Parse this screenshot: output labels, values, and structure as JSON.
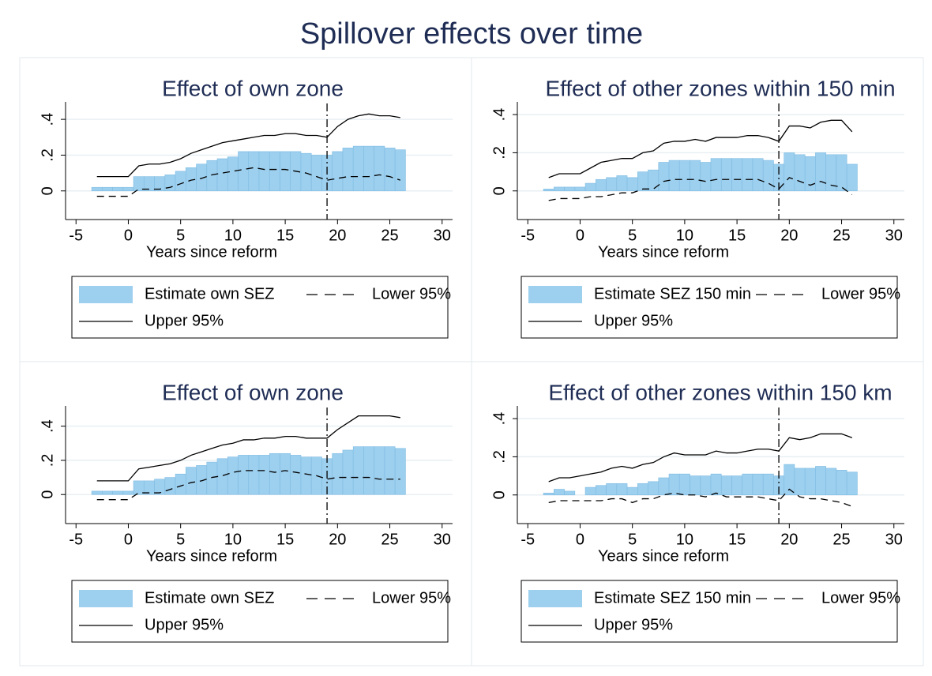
{
  "title": "Spillover effects over time",
  "chart_data": [
    {
      "type": "bar",
      "title": "Effect of own zone",
      "xlabel": "Years since reform",
      "x": [
        -3,
        -2,
        -1,
        0,
        1,
        2,
        3,
        4,
        5,
        6,
        7,
        8,
        9,
        10,
        11,
        12,
        13,
        14,
        15,
        16,
        17,
        18,
        19,
        20,
        21,
        22,
        23,
        24,
        25,
        26
      ],
      "series": [
        {
          "name": "Estimate own SEZ",
          "type": "bar",
          "color": "#9dcfee",
          "values": [
            0.02,
            0.02,
            0.02,
            0.02,
            0.08,
            0.08,
            0.08,
            0.09,
            0.11,
            0.13,
            0.15,
            0.17,
            0.18,
            0.19,
            0.22,
            0.22,
            0.22,
            0.22,
            0.22,
            0.22,
            0.21,
            0.2,
            0.2,
            0.22,
            0.24,
            0.25,
            0.25,
            0.25,
            0.24,
            0.23
          ]
        },
        {
          "name": "Lower 95%",
          "type": "line",
          "dashed": true,
          "color": "#000000",
          "values": [
            -0.03,
            -0.03,
            -0.03,
            -0.03,
            0.01,
            0.01,
            0.01,
            0.02,
            0.04,
            0.06,
            0.07,
            0.09,
            0.1,
            0.11,
            0.12,
            0.13,
            0.12,
            0.12,
            0.12,
            0.11,
            0.1,
            0.08,
            0.06,
            0.07,
            0.08,
            0.08,
            0.08,
            0.09,
            0.08,
            0.06
          ]
        },
        {
          "name": "Upper 95%",
          "type": "line",
          "dashed": false,
          "color": "#000000",
          "values": [
            0.08,
            0.08,
            0.08,
            0.08,
            0.14,
            0.15,
            0.15,
            0.16,
            0.18,
            0.21,
            0.23,
            0.25,
            0.27,
            0.28,
            0.29,
            0.3,
            0.31,
            0.31,
            0.32,
            0.32,
            0.31,
            0.31,
            0.3,
            0.36,
            0.4,
            0.42,
            0.43,
            0.42,
            0.42,
            0.41
          ]
        }
      ],
      "vline": 19,
      "xlim": [
        -6,
        31
      ],
      "xticks": [
        -5,
        0,
        5,
        10,
        15,
        20,
        25,
        30
      ],
      "ylim": [
        -0.16,
        0.48
      ],
      "yticks": [
        0,
        {
          "value": 0.2,
          "label": ".2"
        },
        {
          "value": 0.4,
          "label": ".4"
        }
      ],
      "grid": true
    },
    {
      "type": "bar",
      "title": "Effect of other zones within 150 min",
      "xlabel": "Years since reform",
      "x": [
        -3,
        -2,
        -1,
        0,
        1,
        2,
        3,
        4,
        5,
        6,
        7,
        8,
        9,
        10,
        11,
        12,
        13,
        14,
        15,
        16,
        17,
        18,
        19,
        20,
        21,
        22,
        23,
        24,
        25,
        26
      ],
      "series": [
        {
          "name": "Estimate SEZ 150 min",
          "type": "bar",
          "color": "#9dcfee",
          "values": [
            0.01,
            0.02,
            0.02,
            0.02,
            0.04,
            0.06,
            0.07,
            0.08,
            0.07,
            0.1,
            0.11,
            0.15,
            0.16,
            0.16,
            0.16,
            0.15,
            0.17,
            0.17,
            0.17,
            0.17,
            0.17,
            0.16,
            0.14,
            0.2,
            0.19,
            0.18,
            0.2,
            0.19,
            0.19,
            0.14
          ]
        },
        {
          "name": "Lower 95%",
          "type": "line",
          "dashed": true,
          "color": "#000000",
          "values": [
            -0.05,
            -0.04,
            -0.04,
            -0.04,
            -0.03,
            -0.03,
            -0.02,
            -0.01,
            -0.01,
            0.01,
            0.01,
            0.05,
            0.06,
            0.06,
            0.06,
            0.05,
            0.06,
            0.06,
            0.06,
            0.06,
            0.06,
            0.04,
            0.01,
            0.07,
            0.05,
            0.03,
            0.05,
            0.03,
            0.02,
            -0.02
          ]
        },
        {
          "name": "Upper 95%",
          "type": "line",
          "dashed": false,
          "color": "#000000",
          "values": [
            0.07,
            0.09,
            0.09,
            0.09,
            0.12,
            0.15,
            0.16,
            0.17,
            0.17,
            0.2,
            0.21,
            0.25,
            0.26,
            0.26,
            0.27,
            0.26,
            0.28,
            0.28,
            0.28,
            0.29,
            0.29,
            0.28,
            0.26,
            0.34,
            0.34,
            0.33,
            0.36,
            0.37,
            0.37,
            0.31
          ]
        }
      ],
      "vline": 19,
      "xlim": [
        -6,
        31
      ],
      "xticks": [
        -5,
        0,
        5,
        10,
        15,
        20,
        25,
        30
      ],
      "ylim": [
        -0.15,
        0.45
      ],
      "yticks": [
        0,
        {
          "value": 0.2,
          "label": ".2"
        },
        {
          "value": 0.4,
          "label": ".4"
        }
      ],
      "grid": true
    },
    {
      "type": "bar",
      "title": "Effect of own zone",
      "xlabel": "Years since reform",
      "x": [
        -3,
        -2,
        -1,
        0,
        1,
        2,
        3,
        4,
        5,
        6,
        7,
        8,
        9,
        10,
        11,
        12,
        13,
        14,
        15,
        16,
        17,
        18,
        19,
        20,
        21,
        22,
        23,
        24,
        25,
        26
      ],
      "series": [
        {
          "name": "Estimate own SEZ",
          "type": "bar",
          "color": "#9dcfee",
          "values": [
            0.02,
            0.02,
            0.02,
            0.02,
            0.08,
            0.08,
            0.09,
            0.1,
            0.12,
            0.16,
            0.17,
            0.19,
            0.21,
            0.22,
            0.23,
            0.23,
            0.23,
            0.24,
            0.24,
            0.23,
            0.22,
            0.22,
            0.21,
            0.24,
            0.26,
            0.28,
            0.28,
            0.28,
            0.28,
            0.27
          ]
        },
        {
          "name": "Lower 95%",
          "type": "line",
          "dashed": true,
          "color": "#000000",
          "values": [
            -0.03,
            -0.03,
            -0.03,
            -0.03,
            0.01,
            0.01,
            0.01,
            0.03,
            0.05,
            0.07,
            0.08,
            0.1,
            0.11,
            0.13,
            0.14,
            0.14,
            0.14,
            0.13,
            0.14,
            0.13,
            0.12,
            0.11,
            0.09,
            0.1,
            0.1,
            0.1,
            0.1,
            0.09,
            0.09,
            0.09
          ]
        },
        {
          "name": "Upper 95%",
          "type": "line",
          "dashed": false,
          "color": "#000000",
          "values": [
            0.08,
            0.08,
            0.08,
            0.08,
            0.15,
            0.16,
            0.17,
            0.18,
            0.2,
            0.23,
            0.25,
            0.27,
            0.29,
            0.3,
            0.32,
            0.32,
            0.33,
            0.33,
            0.34,
            0.34,
            0.33,
            0.33,
            0.33,
            0.38,
            0.42,
            0.46,
            0.46,
            0.46,
            0.46,
            0.45
          ]
        }
      ],
      "vline": 19,
      "xlim": [
        -6,
        31
      ],
      "xticks": [
        -5,
        0,
        5,
        10,
        15,
        20,
        25,
        30
      ],
      "ylim": [
        -0.17,
        0.5
      ],
      "yticks": [
        0,
        {
          "value": 0.2,
          "label": ".2"
        },
        {
          "value": 0.4,
          "label": ".4"
        }
      ],
      "grid": true
    },
    {
      "type": "bar",
      "title": "Effect of other zones within 150 km",
      "xlabel": "Years since reform",
      "x": [
        -3,
        -2,
        -1,
        0,
        1,
        2,
        3,
        4,
        5,
        6,
        7,
        8,
        9,
        10,
        11,
        12,
        13,
        14,
        15,
        16,
        17,
        18,
        19,
        20,
        21,
        22,
        23,
        24,
        25,
        26
      ],
      "series": [
        {
          "name": "Estimate SEZ 150 min",
          "type": "bar",
          "color": "#9dcfee",
          "values": [
            0.01,
            0.03,
            0.02,
            0,
            0.04,
            0.05,
            0.06,
            0.06,
            0.04,
            0.06,
            0.07,
            0.09,
            0.11,
            0.11,
            0.1,
            0.1,
            0.11,
            0.1,
            0.1,
            0.11,
            0.11,
            0.11,
            0.1,
            0.16,
            0.14,
            0.14,
            0.15,
            0.14,
            0.13,
            0.12
          ]
        },
        {
          "name": "Lower 95%",
          "type": "line",
          "dashed": true,
          "color": "#000000",
          "values": [
            -0.04,
            -0.03,
            -0.03,
            -0.03,
            -0.03,
            -0.03,
            -0.02,
            -0.02,
            -0.04,
            -0.02,
            -0.02,
            0,
            0.01,
            0,
            0,
            -0.01,
            0.01,
            -0.01,
            -0.01,
            -0.01,
            -0.01,
            -0.02,
            -0.03,
            0.03,
            -0.01,
            -0.02,
            -0.02,
            -0.03,
            -0.04,
            -0.06
          ]
        },
        {
          "name": "Upper 95%",
          "type": "line",
          "dashed": false,
          "color": "#000000",
          "values": [
            0.07,
            0.09,
            0.09,
            0.1,
            0.11,
            0.12,
            0.14,
            0.15,
            0.14,
            0.16,
            0.17,
            0.2,
            0.22,
            0.21,
            0.21,
            0.21,
            0.23,
            0.22,
            0.22,
            0.23,
            0.24,
            0.24,
            0.23,
            0.3,
            0.29,
            0.3,
            0.32,
            0.32,
            0.32,
            0.3
          ]
        }
      ],
      "vline": 19,
      "xlim": [
        -6,
        31
      ],
      "xticks": [
        -5,
        0,
        5,
        10,
        15,
        20,
        25,
        30
      ],
      "ylim": [
        -0.15,
        0.45
      ],
      "yticks": [
        0,
        {
          "value": 0.2,
          "label": ".2"
        },
        {
          "value": 0.4,
          "label": ".4"
        }
      ],
      "grid": true
    }
  ]
}
